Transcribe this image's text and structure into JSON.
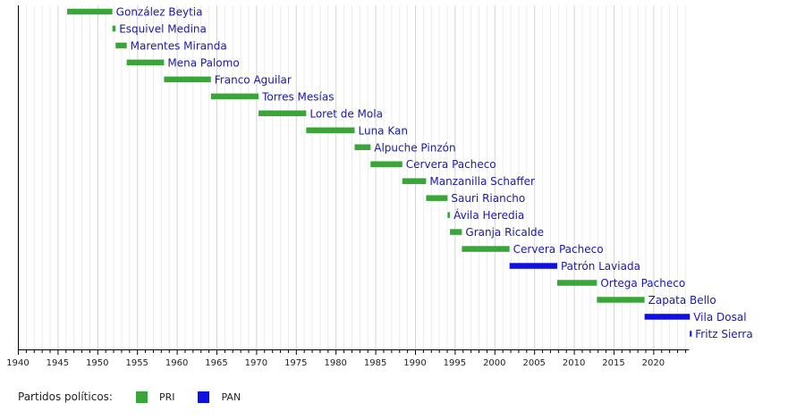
{
  "chart_data": {
    "type": "bar",
    "orientation": "horizontal-timeline",
    "x_range": [
      1940,
      2024.5
    ],
    "x_ticks": [
      1940,
      1945,
      1950,
      1955,
      1960,
      1965,
      1970,
      1975,
      1980,
      1985,
      1990,
      1995,
      2000,
      2005,
      2010,
      2015,
      2020
    ],
    "grid": true,
    "legend": {
      "title": "Partidos políticos:",
      "position": "bottom-left",
      "entries": [
        {
          "party": "PRI",
          "color": "#3aa63a"
        },
        {
          "party": "PAN",
          "color": "#1010e0"
        }
      ]
    },
    "series": [
      {
        "label": "González Beytia",
        "start": 1946.2,
        "end": 1951.9,
        "party": "PRI"
      },
      {
        "label": "Esquivel Medina",
        "start": 1951.9,
        "end": 1952.3,
        "party": "PRI"
      },
      {
        "label": "Marentes Miranda",
        "start": 1952.3,
        "end": 1953.7,
        "party": "PRI"
      },
      {
        "label": "Mena Palomo",
        "start": 1953.7,
        "end": 1958.4,
        "party": "PRI"
      },
      {
        "label": "Franco Aguilar",
        "start": 1958.4,
        "end": 1964.3,
        "party": "PRI"
      },
      {
        "label": "Torres Mesías",
        "start": 1964.3,
        "end": 1970.3,
        "party": "PRI"
      },
      {
        "label": "Loret de Mola",
        "start": 1970.3,
        "end": 1976.3,
        "party": "PRI"
      },
      {
        "label": "Luna Kan",
        "start": 1976.3,
        "end": 1982.4,
        "party": "PRI"
      },
      {
        "label": "Alpuche Pinzón",
        "start": 1982.4,
        "end": 1984.4,
        "party": "PRI"
      },
      {
        "label": "Cervera Pacheco",
        "start": 1984.4,
        "end": 1988.4,
        "party": "PRI"
      },
      {
        "label": "Manzanilla Schaffer",
        "start": 1988.4,
        "end": 1991.4,
        "party": "PRI"
      },
      {
        "label": "Sauri Riancho",
        "start": 1991.4,
        "end": 1994.1,
        "party": "PRI"
      },
      {
        "label": "Ávila Heredia",
        "start": 1994.1,
        "end": 1994.4,
        "party": "PRI"
      },
      {
        "label": "Granja Ricalde",
        "start": 1994.4,
        "end": 1995.9,
        "party": "PRI"
      },
      {
        "label": "Cervera Pacheco",
        "start": 1995.9,
        "end": 2001.9,
        "party": "PRI"
      },
      {
        "label": "Patrón Laviada",
        "start": 2001.9,
        "end": 2007.9,
        "party": "PAN"
      },
      {
        "label": "Ortega Pacheco",
        "start": 2007.9,
        "end": 2012.9,
        "party": "PRI"
      },
      {
        "label": "Zapata Bello",
        "start": 2012.9,
        "end": 2018.9,
        "party": "PRI"
      },
      {
        "label": "Vila Dosal",
        "start": 2018.9,
        "end": 2024.6,
        "party": "PAN"
      },
      {
        "label": "Fritz Sierra",
        "start": 2024.6,
        "end": 2024.8,
        "party": "PAN"
      }
    ]
  }
}
